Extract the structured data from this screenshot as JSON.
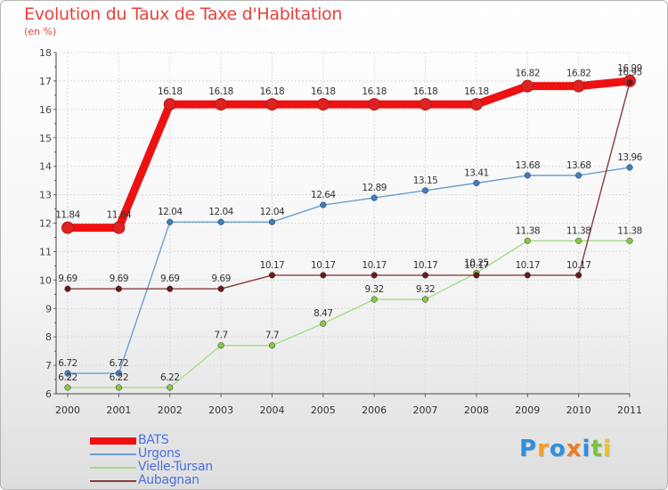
{
  "chart_data": {
    "type": "line",
    "title": "Evolution du Taux de Taxe d'Habitation",
    "subtitle": "(en %)",
    "xlabel": "",
    "ylabel": "(en %)",
    "categories": [
      "2000",
      "2001",
      "2002",
      "2003",
      "2004",
      "2005",
      "2006",
      "2007",
      "2008",
      "2009",
      "2010",
      "2011"
    ],
    "ylim": [
      6,
      18
    ],
    "yticks": [
      6,
      7,
      8,
      9,
      10,
      11,
      12,
      13,
      14,
      15,
      16,
      17,
      18
    ],
    "grid": true,
    "legend_position": "bottom-left",
    "series": [
      {
        "name": "BATS",
        "color": "#ee1111",
        "marker_color": "#dd2222",
        "values": [
          11.84,
          11.84,
          16.18,
          16.18,
          16.18,
          16.18,
          16.18,
          16.18,
          16.18,
          16.82,
          16.82,
          17.0
        ],
        "labels": [
          "11.84",
          "11.84",
          "16.18",
          "16.18",
          "16.18",
          "16.18",
          "16.18",
          "16.18",
          "16.18",
          "16.82",
          "16.82",
          "16.99"
        ]
      },
      {
        "name": "Urgons",
        "color": "#6a9fd4",
        "marker_color": "#3f7ec0",
        "values": [
          6.72,
          6.72,
          12.04,
          12.04,
          12.04,
          12.64,
          12.89,
          13.15,
          13.41,
          13.68,
          13.68,
          13.96
        ],
        "labels": [
          "6.72",
          "6.72",
          "12.04",
          "12.04",
          "12.04",
          "12.64",
          "12.89",
          "13.15",
          "13.41",
          "13.68",
          "13.68",
          "13.96"
        ]
      },
      {
        "name": "Vielle-Tursan",
        "color": "#a7dc85",
        "marker_color": "#82cc3c",
        "values": [
          6.22,
          6.22,
          6.22,
          7.7,
          7.7,
          8.47,
          9.32,
          9.32,
          10.25,
          11.38,
          11.38,
          11.38
        ],
        "labels": [
          "6.22",
          "6.22",
          "6.22",
          "7.7",
          "7.7",
          "8.47",
          "9.32",
          "9.32",
          "10.25",
          "11.38",
          "11.38",
          "11.38"
        ]
      },
      {
        "name": "Aubagnan",
        "color": "#8a3a3a",
        "marker_color": "#6a1a1a",
        "values": [
          9.69,
          9.69,
          9.69,
          9.69,
          10.17,
          10.17,
          10.17,
          10.17,
          10.17,
          10.17,
          10.17,
          16.95
        ],
        "labels": [
          "9.69",
          "9.69",
          "9.69",
          "9.69",
          "10.17",
          "10.17",
          "10.17",
          "10.17",
          "10.17",
          "10.17",
          "10.17",
          "16.95"
        ]
      }
    ]
  },
  "logo": {
    "letters": [
      "P",
      "r",
      "o",
      "x",
      "i",
      "t",
      "i"
    ],
    "colors": [
      "#2f8fe0",
      "#f0a12a",
      "#2f8fe0",
      "#f07a22",
      "#2f8fe0",
      "#7cc242",
      "#f0c020"
    ]
  }
}
